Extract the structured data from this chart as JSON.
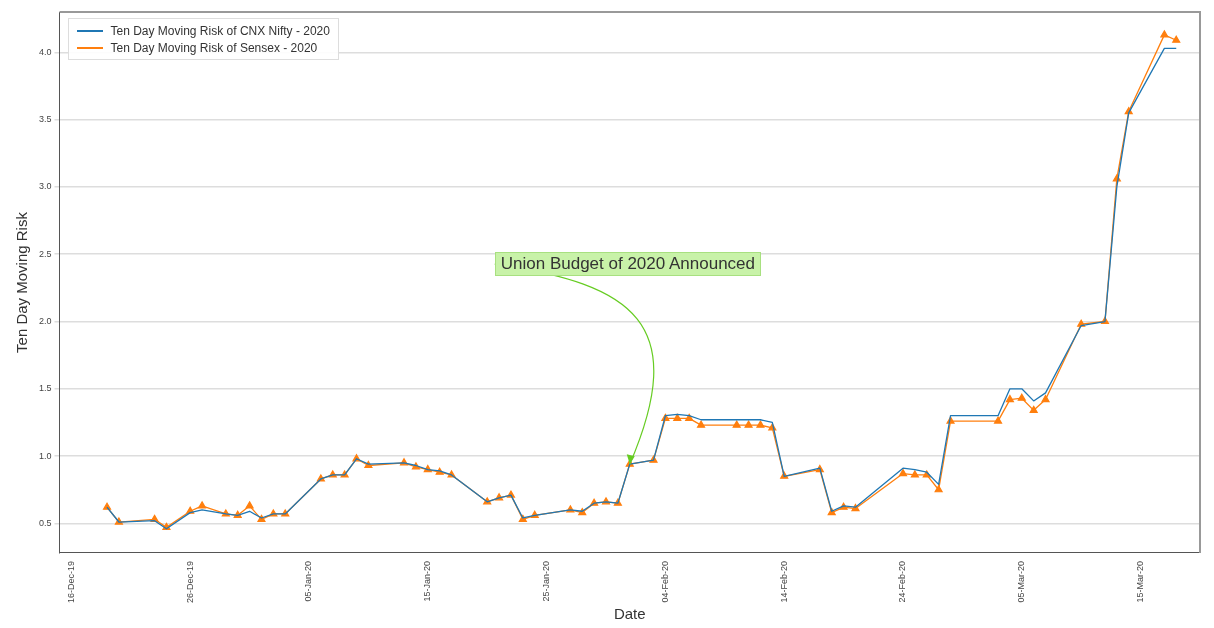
{
  "chart_data": {
    "type": "line",
    "xlabel": "Date",
    "ylabel": "Ten Day Moving Risk",
    "x": [
      "2019-12-19",
      "2019-12-20",
      "2019-12-23",
      "2019-12-24",
      "2019-12-26",
      "2019-12-27",
      "2019-12-29",
      "2019-12-30",
      "2019-12-31",
      "2020-01-01",
      "2020-01-02",
      "2020-01-03",
      "2020-01-06",
      "2020-01-07",
      "2020-01-08",
      "2020-01-09",
      "2020-01-10",
      "2020-01-13",
      "2020-01-14",
      "2020-01-15",
      "2020-01-16",
      "2020-01-17",
      "2020-01-20",
      "2020-01-21",
      "2020-01-22",
      "2020-01-23",
      "2020-01-24",
      "2020-01-27",
      "2020-01-28",
      "2020-01-29",
      "2020-01-30",
      "2020-01-31",
      "2020-02-01",
      "2020-02-03",
      "2020-02-04",
      "2020-02-05",
      "2020-02-06",
      "2020-02-07",
      "2020-02-10",
      "2020-02-11",
      "2020-02-12",
      "2020-02-13",
      "2020-02-14",
      "2020-02-17",
      "2020-02-18",
      "2020-02-19",
      "2020-02-20",
      "2020-02-24",
      "2020-02-25",
      "2020-02-26",
      "2020-02-27",
      "2020-02-28",
      "2020-03-03",
      "2020-03-04",
      "2020-03-05",
      "2020-03-06",
      "2020-03-07",
      "2020-03-10",
      "2020-03-12",
      "2020-03-13",
      "2020-03-14",
      "2020-03-17",
      "2020-03-18"
    ],
    "series": [
      {
        "name": "Ten Day Moving Risk of CNX Nifty - 2020",
        "color": "#1f77b4",
        "marker": "none",
        "values": [
          0.62,
          0.51,
          0.52,
          0.46,
          0.58,
          0.6,
          0.57,
          0.56,
          0.59,
          0.54,
          0.57,
          0.57,
          0.83,
          0.86,
          0.86,
          0.98,
          0.94,
          0.95,
          0.93,
          0.9,
          0.89,
          0.86,
          0.66,
          0.69,
          0.71,
          0.54,
          0.56,
          0.6,
          0.59,
          0.65,
          0.66,
          0.65,
          0.94,
          0.97,
          1.3,
          1.31,
          1.3,
          1.27,
          1.27,
          1.27,
          1.27,
          1.25,
          0.85,
          0.91,
          0.59,
          0.63,
          0.62,
          0.91,
          0.9,
          0.88,
          0.79,
          1.3,
          1.3,
          1.5,
          1.5,
          1.41,
          1.47,
          1.97,
          2.0,
          3.0,
          3.55,
          4.03,
          4.03
        ]
      },
      {
        "name": "Ten Day Moving Risk of Sensex - 2020",
        "color": "#ff7f0e",
        "marker": "triangle",
        "values": [
          0.62,
          0.51,
          0.53,
          0.47,
          0.59,
          0.63,
          0.57,
          0.56,
          0.63,
          0.53,
          0.57,
          0.57,
          0.83,
          0.86,
          0.86,
          0.98,
          0.93,
          0.95,
          0.92,
          0.9,
          0.88,
          0.86,
          0.66,
          0.69,
          0.71,
          0.53,
          0.56,
          0.6,
          0.58,
          0.65,
          0.66,
          0.65,
          0.94,
          0.97,
          1.28,
          1.28,
          1.28,
          1.23,
          1.23,
          1.23,
          1.23,
          1.21,
          0.85,
          0.9,
          0.58,
          0.62,
          0.61,
          0.87,
          0.86,
          0.86,
          0.75,
          1.26,
          1.26,
          1.42,
          1.43,
          1.34,
          1.42,
          1.98,
          2.0,
          3.06,
          3.56,
          4.13,
          4.09
        ]
      }
    ],
    "xlim": [
      "2019-12-15",
      "2020-03-20"
    ],
    "xticks": [
      {
        "value": "2019-12-16",
        "label": "16-Dec-19"
      },
      {
        "value": "2019-12-26",
        "label": "26-Dec-19"
      },
      {
        "value": "2020-01-05",
        "label": "05-Jan-20"
      },
      {
        "value": "2020-01-15",
        "label": "15-Jan-20"
      },
      {
        "value": "2020-01-25",
        "label": "25-Jan-20"
      },
      {
        "value": "2020-02-04",
        "label": "04-Feb-20"
      },
      {
        "value": "2020-02-14",
        "label": "14-Feb-20"
      },
      {
        "value": "2020-02-24",
        "label": "24-Feb-20"
      },
      {
        "value": "2020-03-05",
        "label": "05-Mar-20"
      },
      {
        "value": "2020-03-15",
        "label": "15-Mar-20"
      }
    ],
    "ylim": [
      0.28,
      4.3
    ],
    "yticks": [
      {
        "value": 0.5,
        "label": "0.5"
      },
      {
        "value": 1,
        "label": "1.0"
      },
      {
        "value": 1.5,
        "label": "1.5"
      },
      {
        "value": 2,
        "label": "2.0"
      },
      {
        "value": 2.5,
        "label": "2.5"
      },
      {
        "value": 3,
        "label": "3.0"
      },
      {
        "value": 3.5,
        "label": "3.5"
      },
      {
        "value": 4,
        "label": "4.0"
      }
    ],
    "grid": "y",
    "legend": "top left",
    "line_style": "solid",
    "annotations": [
      {
        "text": "Union Budget of 2020 Announced",
        "x": "2020-02-01",
        "y": 0.94
      }
    ]
  }
}
